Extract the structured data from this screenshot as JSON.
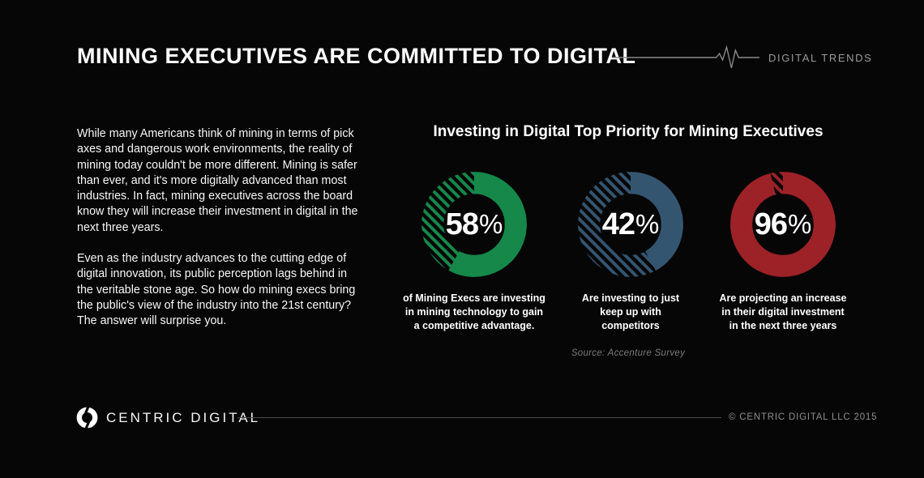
{
  "page": {
    "background": "#060606"
  },
  "header": {
    "title": "MINING EXECUTIVES ARE COMMITTED TO DIGITAL",
    "brand_label": "DIGITAL TRENDS",
    "pulse_icon": "ecg-pulse-line",
    "line_color": "#8a8a8a"
  },
  "intro": {
    "paragraph1": "While many Americans think of mining in terms of pick axes and dangerous work environments, the reality of mining today couldn't be more different. Mining is safer than ever, and it's more digitally advanced than most industries. In fact, mining executives across the board know they will increase their investment in digital in the next three years.",
    "paragraph2": "Even as the industry advances to the cutting edge of digital innovation, its public perception lags behind in the veritable stone age. So how do mining execs bring the public's view of the industry into the 21st century? The answer will surprise you."
  },
  "chart_data": {
    "type": "pie",
    "subtype": "donut",
    "title": "Investing in Digital Top Priority for Mining Executives",
    "unit": "%",
    "remainder_style": "diagonal-hatch",
    "legend_position": "none",
    "donuts": [
      {
        "value": 58,
        "color": "#15884a",
        "caption_lines": [
          "of Mining Execs are investing",
          "in mining technology to gain",
          "a competitive advantage."
        ]
      },
      {
        "value": 42,
        "color": "#345570",
        "caption_lines": [
          "Are investing to just",
          "keep up with",
          "competitors"
        ]
      },
      {
        "value": 96,
        "color": "#9d2228",
        "caption_lines": [
          "Are projecting an increase",
          "in their digital investment",
          "in the next three years"
        ]
      }
    ],
    "source": "Source: Accenture Survey"
  },
  "footer": {
    "logo_icon": "centric-digital-ring",
    "brand": "CENTRIC DIGITAL",
    "copyright": "© CENTRIC DIGITAL LLC 2015"
  }
}
